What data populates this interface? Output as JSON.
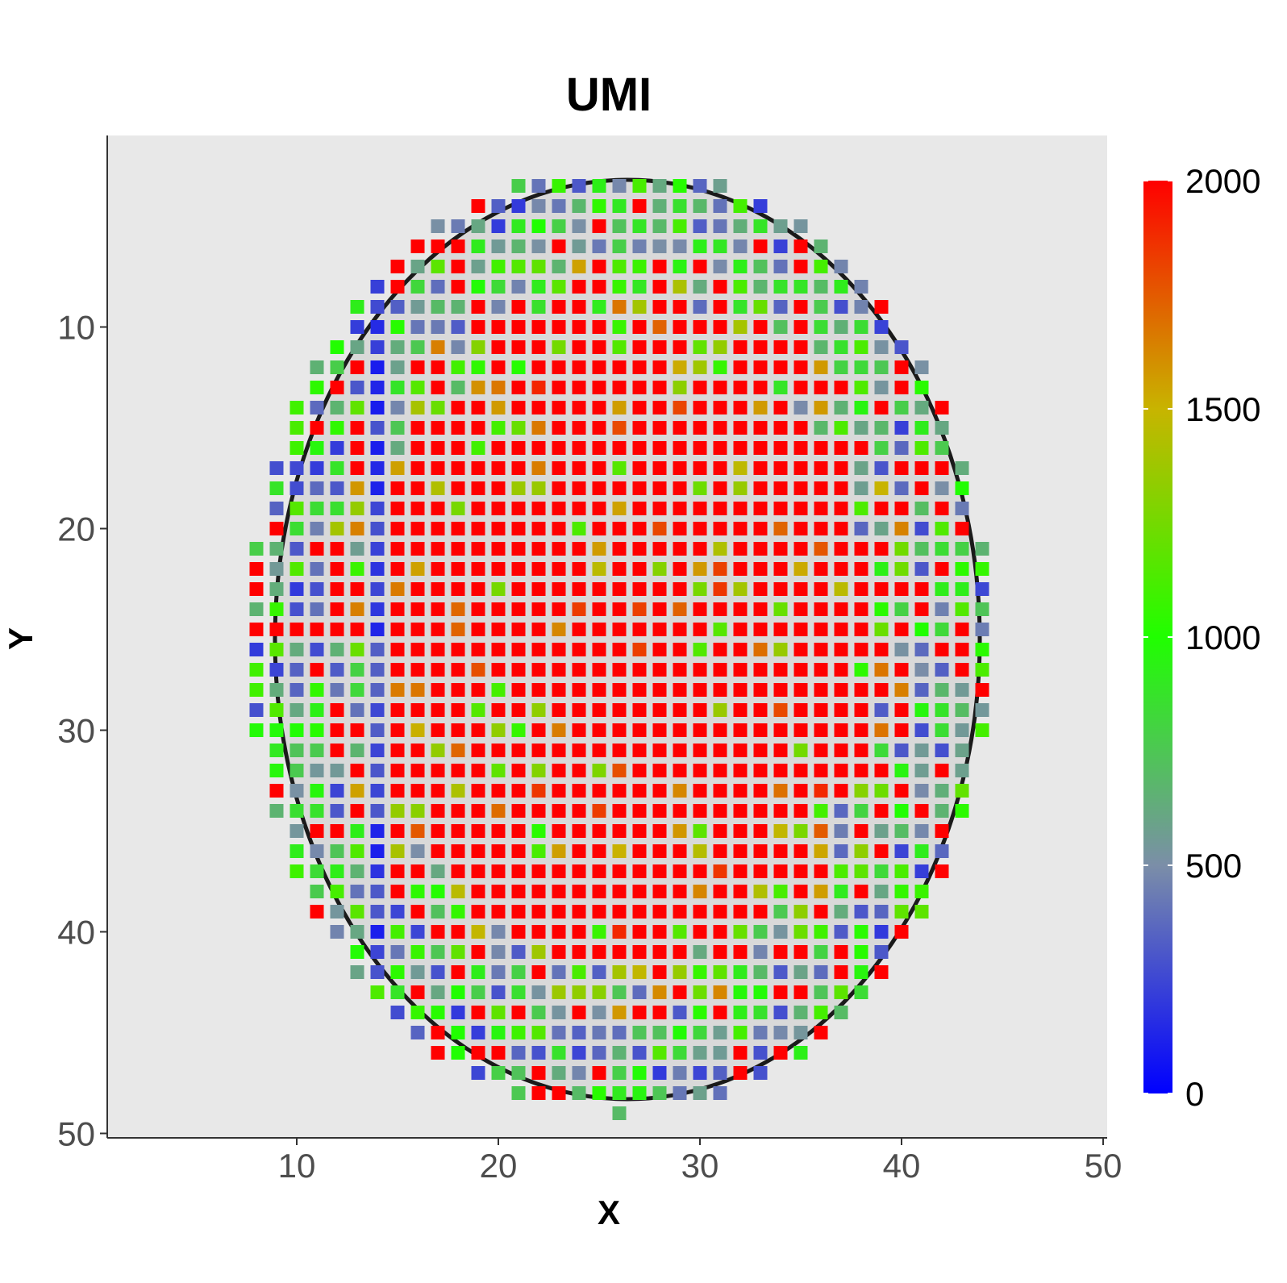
{
  "chart_data": {
    "type": "heatmap",
    "title": "UMI",
    "xlabel": "X",
    "ylabel": "Y",
    "xlim": [
      0.5,
      50
    ],
    "ylim": [
      50.5,
      1
    ],
    "y_reversed": true,
    "x_ticks": [
      "10",
      "20",
      "30",
      "40",
      "50"
    ],
    "y_ticks": [
      "10",
      "20",
      "30",
      "40",
      "50"
    ],
    "grid": false,
    "background": "tissue histology image (grayscale)",
    "colorbar": {
      "min": 0,
      "max": 2000,
      "ticks": [
        "0",
        "500",
        "1000",
        "1500",
        "2000"
      ],
      "colors": [
        "#0000ff",
        "#7b8ea8",
        "#20ff00",
        "#c8b400",
        "#ff0000"
      ],
      "placement": "right"
    },
    "spot_grid": {
      "x_range": [
        8,
        44
      ],
      "y_range": [
        3,
        49
      ],
      "shape": "ellipse",
      "center": [
        26,
        25.5
      ],
      "radius_x": 18.5,
      "radius_y": 23.5
    },
    "description_of_values": "Spots inside tissue; high UMI (~2000, red) in the central region, lower values (0-1000, blue/gray/green) toward the periphery, with a low-UMI blue column near X=14."
  }
}
